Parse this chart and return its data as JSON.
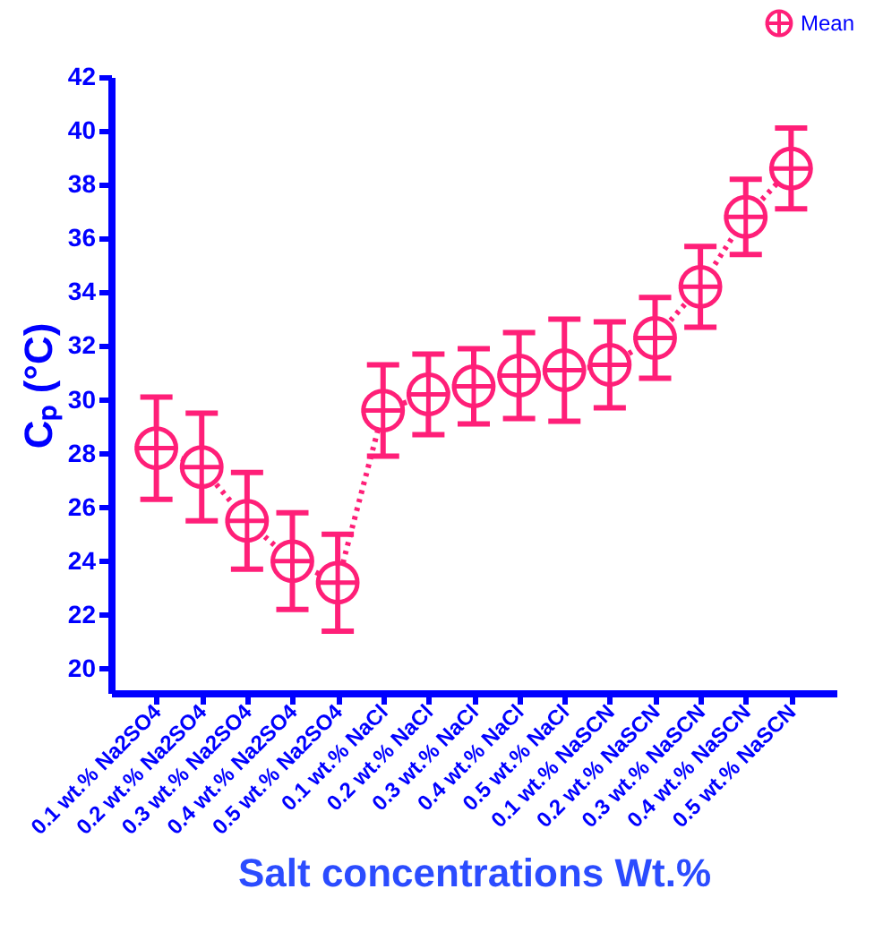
{
  "chart_data": {
    "type": "line",
    "xlabel": "Salt concentrations Wt.%",
    "ylabel": "Cₚ (°C)",
    "categories": [
      "0.1 wt.% Na2SO4",
      "0.2 wt.% Na2SO4",
      "0.3 wt.% Na2SO4",
      "0.4 wt.% Na2SO4",
      "0.5 wt.% Na2SO4",
      "0.1 wt.% NaCl",
      "0.2 wt.% NaCl",
      "0.3 wt.% NaCl",
      "0.4 wt.% NaCl",
      "0.5 wt.% NaCl",
      "0.1 wt.% NaSCN",
      "0.2 wt.% NaSCN",
      "0.3 wt.% NaSCN",
      "0.4 wt.% NaSCN",
      "0.5 wt.% NaSCN"
    ],
    "series": [
      {
        "name": "Mean",
        "color": "#ff1f78",
        "values": [
          28.2,
          27.5,
          25.5,
          24.0,
          23.2,
          29.6,
          30.2,
          30.5,
          30.9,
          31.1,
          31.3,
          32.3,
          34.2,
          36.8,
          38.6
        ],
        "errors": [
          1.9,
          2.0,
          1.8,
          1.8,
          1.8,
          1.7,
          1.5,
          1.4,
          1.6,
          1.9,
          1.6,
          1.5,
          1.5,
          1.4,
          1.5
        ]
      }
    ],
    "ylim": [
      19.1,
      42
    ],
    "yticks": [
      20,
      22,
      24,
      26,
      28,
      30,
      32,
      34,
      36,
      38,
      40,
      42
    ],
    "grid": false,
    "legend": "top right",
    "marker": "circle",
    "line_style": "dotted"
  }
}
